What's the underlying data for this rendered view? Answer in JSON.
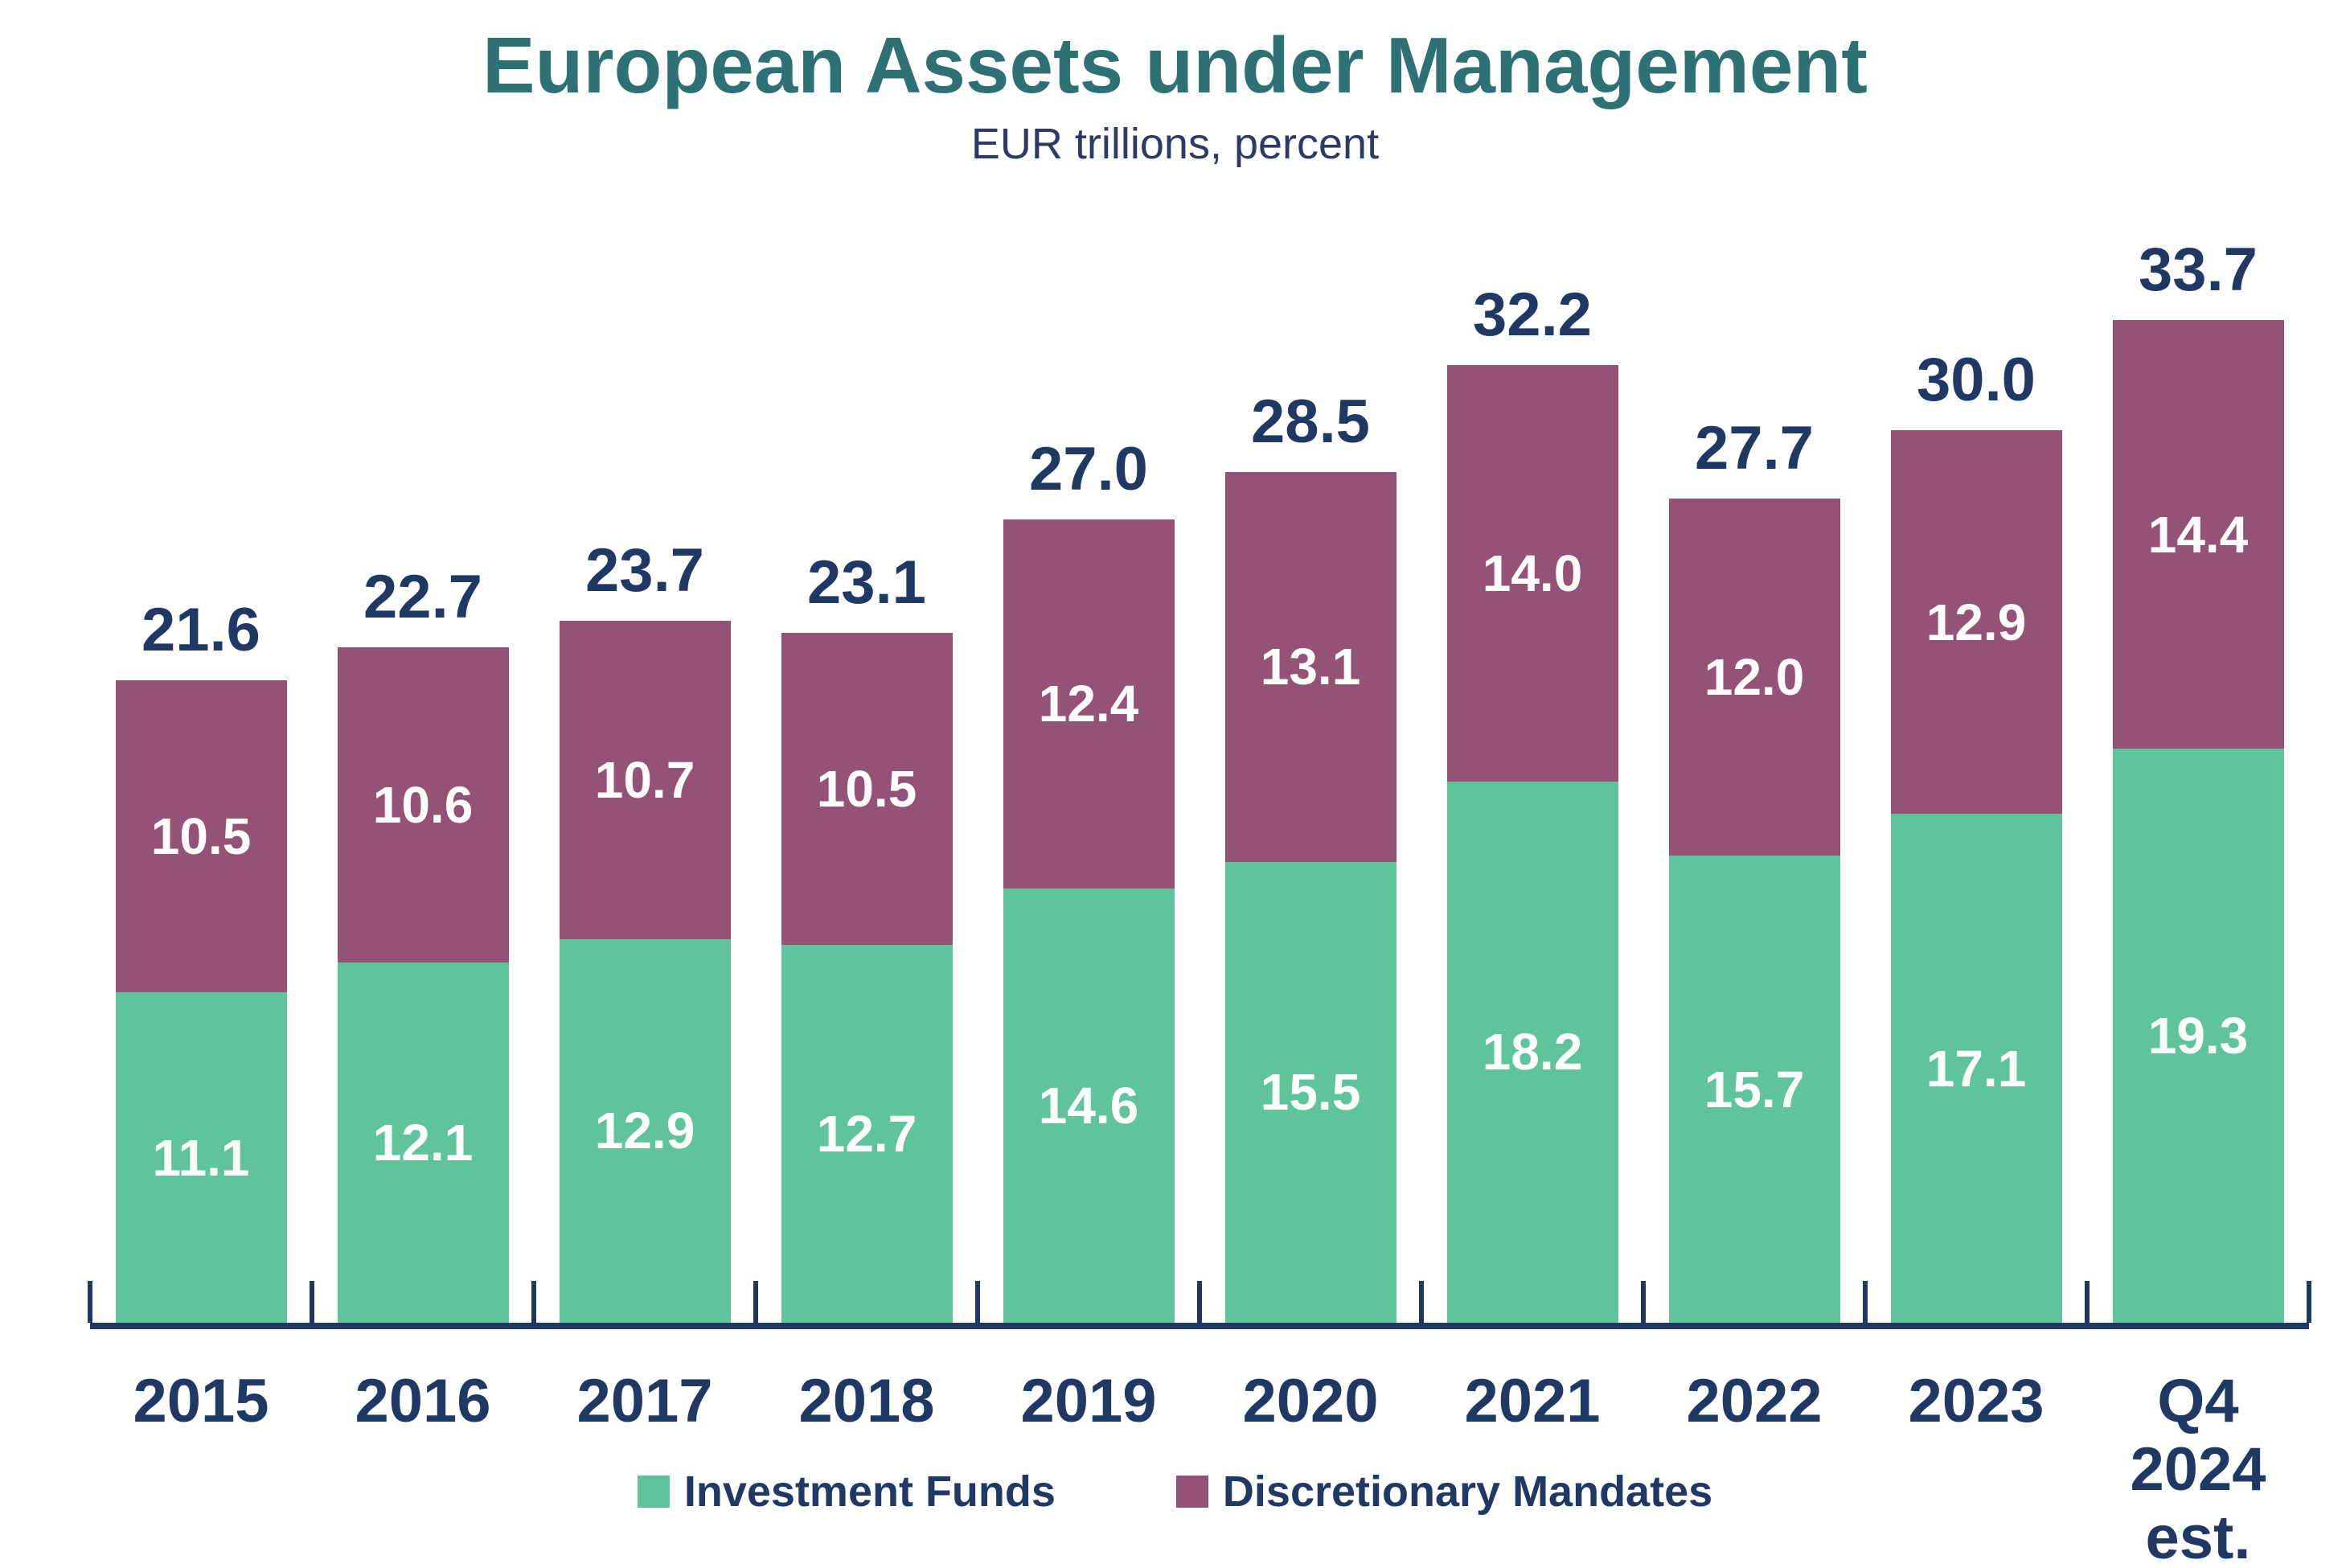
{
  "title": "European Assets under Management",
  "subtitle": "EUR trillions, percent",
  "colors": {
    "background": "#FFFFFF",
    "title": "#2E7175",
    "subtitle": "#2B3A67",
    "label_navy": "#203864",
    "axis": "#1F3864",
    "investment_funds": "#5FC39B",
    "discretionary_mandates": "#935276",
    "segment_label": "#FFFFFF"
  },
  "legend": {
    "items": [
      {
        "label": "Investment Funds",
        "color_key": "investment_funds"
      },
      {
        "label": "Discretionary Mandates",
        "color_key": "discretionary_mandates"
      }
    ]
  },
  "chart_data": {
    "type": "bar",
    "stacked": true,
    "title": "European Assets under Management",
    "subtitle": "EUR trillions, percent",
    "unit": "EUR trillions",
    "categories": [
      "2015",
      "2016",
      "2017",
      "2018",
      "2019",
      "2020",
      "2021",
      "2022",
      "2023",
      "Q4 2024 est."
    ],
    "x_tick_labels": [
      "2015",
      "2016",
      "2017",
      "2018",
      "2019",
      "2020",
      "2021",
      "2022",
      "2023",
      "Q4\n2024\nest."
    ],
    "series": [
      {
        "name": "Investment Funds",
        "color": "#5FC39B",
        "values": [
          11.1,
          12.1,
          12.9,
          12.7,
          14.6,
          15.5,
          18.2,
          15.7,
          17.1,
          19.3
        ]
      },
      {
        "name": "Discretionary Mandates",
        "color": "#935276",
        "values": [
          10.5,
          10.6,
          10.7,
          10.5,
          12.4,
          13.1,
          14.0,
          12.0,
          12.9,
          14.4
        ]
      }
    ],
    "totals": [
      21.6,
      22.7,
      23.7,
      23.1,
      27.0,
      28.5,
      32.2,
      27.7,
      30.0,
      33.7
    ],
    "value_decimals": 1,
    "ylim": [
      0,
      35
    ],
    "grid": false,
    "y_axis_visible": false,
    "legend_position": "bottom",
    "segment_order_top_to_bottom": [
      "Discretionary Mandates",
      "Investment Funds"
    ]
  }
}
